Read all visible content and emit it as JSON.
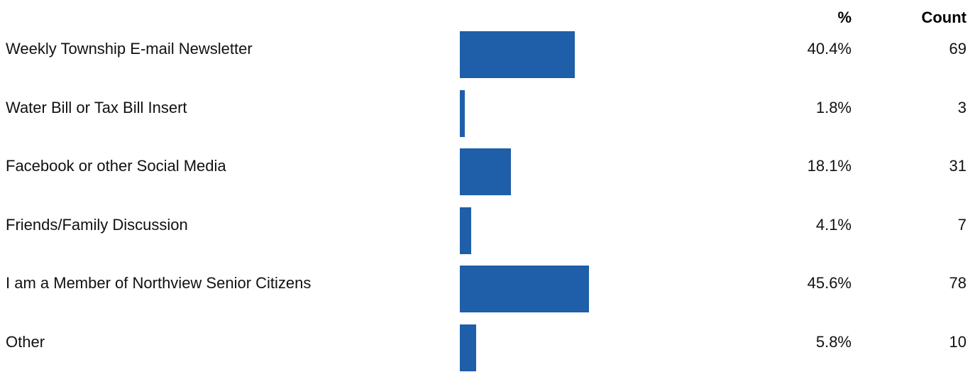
{
  "headers": {
    "percent": "%",
    "count": "Count"
  },
  "colors": {
    "bar": "#1f5ea8"
  },
  "chart_data": {
    "type": "bar",
    "orientation": "horizontal",
    "categories": [
      "Weekly Township E-mail Newsletter",
      "Water Bill or Tax Bill Insert",
      "Facebook or other Social Media",
      "Friends/Family Discussion",
      "I am a Member of Northview Senior Citizens",
      "Other"
    ],
    "values": [
      40.4,
      1.8,
      18.1,
      4.1,
      45.6,
      5.8
    ],
    "counts": [
      69,
      3,
      31,
      7,
      78,
      10
    ],
    "percent_labels": [
      "40.4%",
      "1.8%",
      "18.1%",
      "4.1%",
      "45.6%",
      "5.8%"
    ],
    "count_labels": [
      "69",
      "3",
      "31",
      "7",
      "78",
      "10"
    ],
    "xlim": [
      0,
      100
    ],
    "grid": false,
    "legend": "none"
  }
}
